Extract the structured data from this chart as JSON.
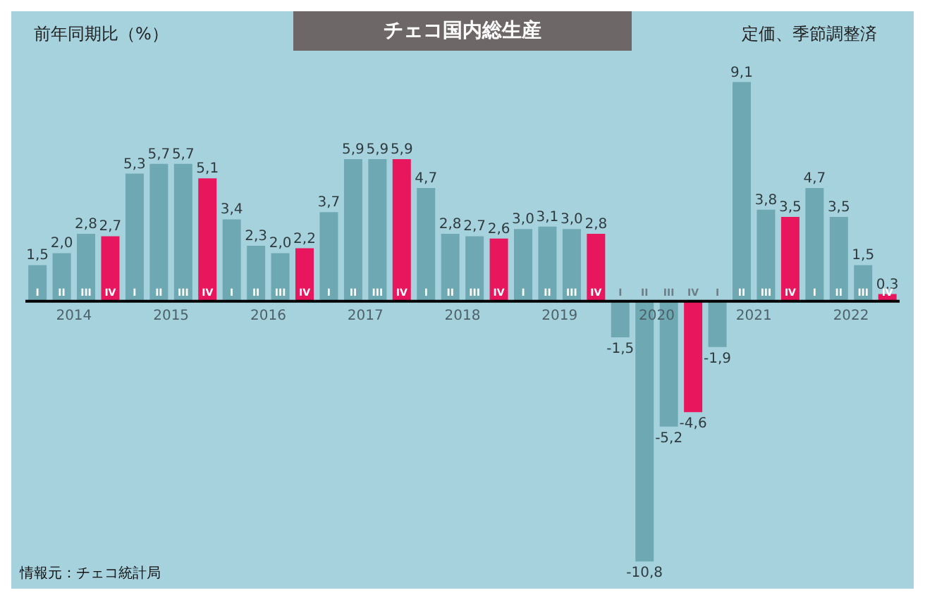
{
  "chart_data": {
    "type": "bar",
    "title": "チェコ国内総生産",
    "subtitle": "定価、季節調整済",
    "ylabel": "前年同期比（%）",
    "categories": [
      "I",
      "II",
      "III",
      "IV",
      "I",
      "II",
      "III",
      "IV",
      "I",
      "II",
      "III",
      "IV",
      "I",
      "II",
      "III",
      "IV",
      "I",
      "II",
      "III",
      "IV",
      "I",
      "II",
      "III",
      "IV",
      "I",
      "II",
      "III",
      "IV",
      "I",
      "II",
      "III",
      "IV",
      "I",
      "II",
      "III",
      "IV"
    ],
    "values": [
      1.5,
      2.0,
      2.8,
      2.7,
      5.3,
      5.7,
      5.7,
      5.1,
      3.4,
      2.3,
      2.0,
      2.2,
      3.7,
      5.9,
      5.9,
      5.9,
      4.7,
      2.8,
      2.7,
      2.6,
      3.0,
      3.1,
      3.0,
      2.8,
      -1.5,
      -10.8,
      -5.2,
      -4.6,
      -1.9,
      9.1,
      3.8,
      3.5,
      4.7,
      3.5,
      1.5,
      0.3
    ],
    "colors": [
      "#6ea9b3",
      "#6ea9b3",
      "#6ea9b3",
      "#e8175d",
      "#6ea9b3",
      "#6ea9b3",
      "#6ea9b3",
      "#e8175d",
      "#6ea9b3",
      "#6ea9b3",
      "#6ea9b3",
      "#e8175d",
      "#6ea9b3",
      "#6ea9b3",
      "#6ea9b3",
      "#e8175d",
      "#6ea9b3",
      "#6ea9b3",
      "#6ea9b3",
      "#e8175d",
      "#6ea9b3",
      "#6ea9b3",
      "#6ea9b3",
      "#e8175d",
      "#6ea9b3",
      "#6ea9b3",
      "#6ea9b3",
      "#e8175d",
      "#6ea9b3",
      "#6ea9b3",
      "#6ea9b3",
      "#e8175d",
      "#6ea9b3",
      "#6ea9b3",
      "#6ea9b3",
      "#e8175d"
    ],
    "value_labels": [
      "1,5",
      "2,0",
      "2,8",
      "2,7",
      "5,3",
      "5,7",
      "5,7",
      "5,1",
      "3,4",
      "2,3",
      "2,0",
      "2,2",
      "3,7",
      "5,9",
      "5,9",
      "5,9",
      "4,7",
      "2,8",
      "2,7",
      "2,6",
      "3,0",
      "3,1",
      "3,0",
      "2,8",
      "-1,5",
      "-10,8",
      "-5,2",
      "-4,6",
      "-1,9",
      "9,1",
      "3,8",
      "3,5",
      "4,7",
      "3,5",
      "1,5",
      "0,3"
    ],
    "annotations": [
      "2014",
      "2015",
      "2016",
      "2017",
      "2018",
      "2019",
      "2020",
      "2021",
      "2022",
      "情報元：チェコ統計局"
    ]
  }
}
